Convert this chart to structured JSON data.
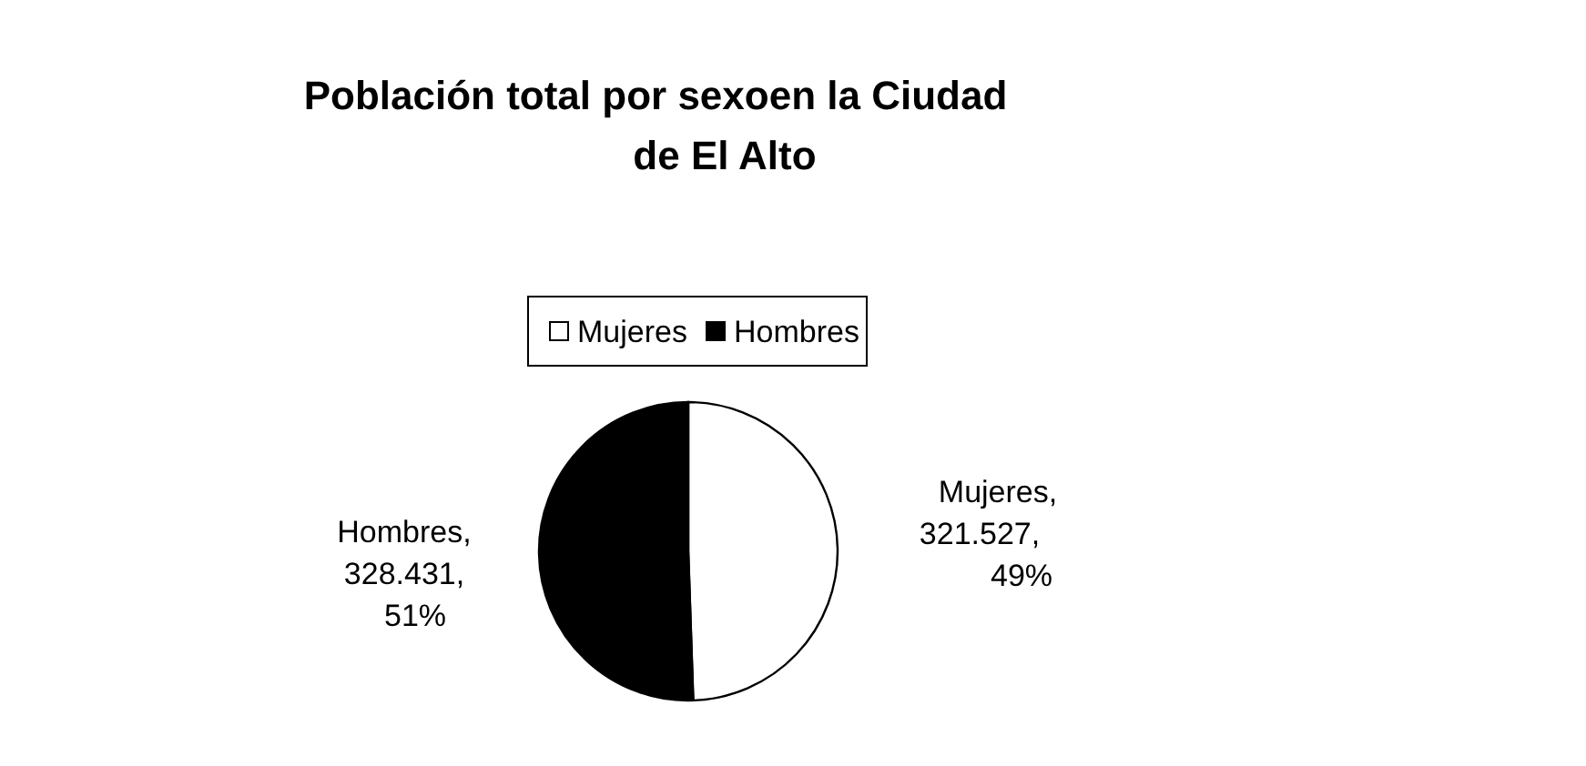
{
  "chart_data": {
    "type": "pie",
    "title": "Población total por sexoen la Ciudad de El Alto",
    "categories": [
      "Mujeres",
      "Hombres"
    ],
    "values": [
      321527,
      328431
    ],
    "colors": [
      "#ffffff",
      "#000000"
    ],
    "value_labels": [
      "Mujeres,\n321.527,\n49%",
      "Hombres,\n328.431,\n51%"
    ],
    "legend": "top"
  }
}
